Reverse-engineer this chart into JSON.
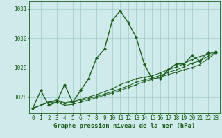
{
  "title": "Graphe pression niveau de la mer (hPa)",
  "background_color": "#ceeaea",
  "line_color": "#1a5c1a",
  "grid_color": "#a0c8c8",
  "x_ticks": [
    0,
    1,
    2,
    3,
    4,
    5,
    6,
    7,
    8,
    9,
    10,
    11,
    12,
    13,
    14,
    15,
    16,
    17,
    18,
    19,
    20,
    21,
    22,
    23
  ],
  "y_ticks": [
    1028,
    1029,
    1030,
    1031
  ],
  "ylim": [
    1027.45,
    1031.25
  ],
  "xlim": [
    -0.5,
    23.5
  ],
  "series_main": [
    1027.62,
    1028.22,
    1027.72,
    1027.82,
    1028.42,
    1027.82,
    1028.22,
    1028.62,
    1029.32,
    1029.62,
    1030.62,
    1030.92,
    1030.52,
    1030.02,
    1029.12,
    1028.62,
    1028.62,
    1028.92,
    1029.12,
    1029.12,
    1029.42,
    1029.22,
    1029.52,
    1029.52
  ],
  "series_trend1": [
    1027.62,
    1027.72,
    1027.82,
    1027.82,
    1027.72,
    1027.75,
    1027.82,
    1027.9,
    1027.98,
    1028.06,
    1028.14,
    1028.22,
    1028.32,
    1028.42,
    1028.52,
    1028.6,
    1028.68,
    1028.76,
    1028.84,
    1028.92,
    1029.0,
    1029.1,
    1029.3,
    1029.5
  ],
  "series_trend2": [
    1027.62,
    1027.72,
    1027.82,
    1027.87,
    1027.77,
    1027.82,
    1027.88,
    1027.95,
    1028.02,
    1028.1,
    1028.18,
    1028.28,
    1028.38,
    1028.5,
    1028.58,
    1028.65,
    1028.73,
    1028.83,
    1028.92,
    1029.02,
    1029.15,
    1029.22,
    1029.38,
    1029.52
  ],
  "series_trend3": [
    1027.62,
    1027.72,
    1027.82,
    1027.9,
    1027.8,
    1027.85,
    1027.92,
    1028.0,
    1028.08,
    1028.18,
    1028.28,
    1028.42,
    1028.52,
    1028.62,
    1028.68,
    1028.72,
    1028.82,
    1028.92,
    1029.02,
    1029.12,
    1029.28,
    1029.38,
    1029.45,
    1029.55
  ],
  "marker": "D",
  "markersize": 2.2,
  "linewidth_main": 1.0,
  "linewidth_trend": 0.7,
  "xlabel_fontsize": 6.5,
  "tick_fontsize": 5.5
}
